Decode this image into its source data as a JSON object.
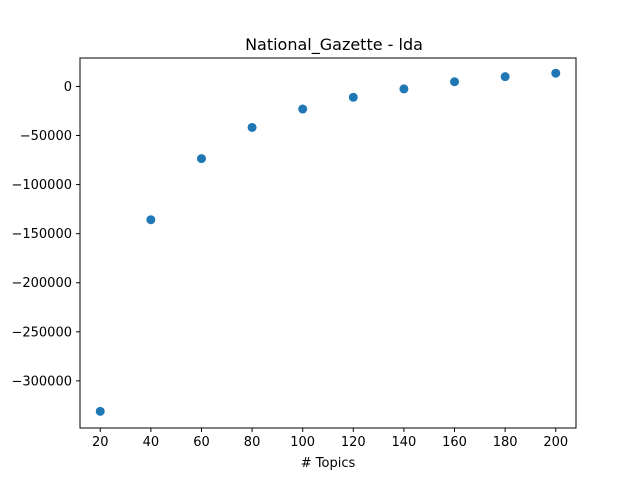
{
  "chart_data": {
    "type": "scatter",
    "title": "National_Gazette - lda",
    "xlabel": "# Topics",
    "ylabel": "",
    "x": [
      20,
      40,
      60,
      80,
      100,
      120,
      140,
      160,
      180,
      200
    ],
    "y": [
      -331000,
      -135800,
      -73500,
      -41800,
      -23000,
      -11000,
      -2500,
      4800,
      10000,
      13500
    ],
    "xlim": [
      12,
      208
    ],
    "ylim": [
      -348000,
      29000
    ],
    "xticks": [
      20,
      40,
      60,
      80,
      100,
      120,
      140,
      160,
      180,
      200
    ],
    "xtick_labels": [
      "20",
      "40",
      "60",
      "80",
      "100",
      "120",
      "140",
      "160",
      "180",
      "200"
    ],
    "yticks": [
      0,
      -50000,
      -100000,
      -150000,
      -200000,
      -250000,
      -300000
    ],
    "ytick_labels": [
      "0",
      "−50000",
      "−100000",
      "−150000",
      "−200000",
      "−250000",
      "−300000"
    ],
    "grid": false,
    "legend": "none",
    "marker_color": "#1f77b4"
  }
}
